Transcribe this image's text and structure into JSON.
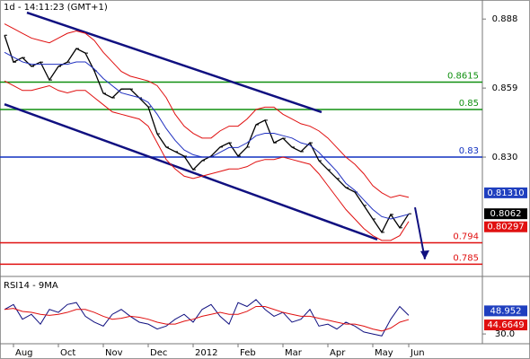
{
  "chart_data": [
    {
      "type": "ohlc-line",
      "title": "1d - 14:11:23 (GMT+1)",
      "categories": [
        null,
        "Aug",
        null,
        null,
        null,
        null,
        "Oct",
        null,
        null,
        null,
        null,
        "Nov",
        null,
        null,
        null,
        null,
        "Dec",
        null,
        null,
        null,
        null,
        "2012",
        null,
        null,
        null,
        null,
        "Feb",
        null,
        null,
        null,
        null,
        "Mar",
        null,
        null,
        null,
        null,
        "Apr",
        null,
        null,
        null,
        null,
        "May",
        null,
        null,
        null,
        "Jun"
      ],
      "ylim": [
        0.781,
        0.896
      ],
      "yticks": [
        0.888,
        0.859,
        {
          "value": 0.83,
          "label": "0.830"
        }
      ],
      "series": [
        {
          "color": "#000000",
          "values": [
            0.8812,
            0.8699,
            0.8718,
            0.8681,
            0.8699,
            0.8624,
            0.8681,
            0.8699,
            0.8756,
            0.8737,
            0.8662,
            0.8568,
            0.8549,
            0.8586,
            0.8586,
            0.8549,
            0.8511,
            0.8398,
            0.8342,
            0.8323,
            0.8304,
            0.8247,
            0.8285,
            0.8304,
            0.8342,
            0.836,
            0.8304,
            0.8342,
            0.8436,
            0.8455,
            0.836,
            0.8379,
            0.8342,
            0.8323,
            0.836,
            0.8285,
            0.8247,
            0.821,
            0.8172,
            0.8153,
            0.8097,
            0.804,
            0.7984,
            0.8059,
            0.8003,
            0.8062
          ]
        },
        {
          "color": "#e01010",
          "values": [
            0.886,
            0.884,
            0.882,
            0.88,
            0.879,
            0.878,
            0.88,
            0.882,
            0.883,
            0.882,
            0.879,
            0.874,
            0.87,
            0.866,
            0.864,
            0.863,
            0.862,
            0.86,
            0.855,
            0.848,
            0.843,
            0.84,
            0.838,
            0.838,
            0.841,
            0.843,
            0.843,
            0.846,
            0.85,
            0.851,
            0.851,
            0.848,
            0.846,
            0.844,
            0.843,
            0.841,
            0.838,
            0.834,
            0.83,
            0.827,
            0.823,
            0.818,
            0.815,
            0.813,
            0.814,
            0.8131
          ]
        },
        {
          "color": "#e01010",
          "values": [
            0.862,
            0.86,
            0.858,
            0.858,
            0.859,
            0.86,
            0.858,
            0.857,
            0.858,
            0.858,
            0.855,
            0.852,
            0.849,
            0.848,
            0.847,
            0.846,
            0.843,
            0.836,
            0.829,
            0.825,
            0.822,
            0.821,
            0.822,
            0.823,
            0.824,
            0.825,
            0.825,
            0.826,
            0.828,
            0.829,
            0.829,
            0.83,
            0.829,
            0.828,
            0.827,
            0.823,
            0.818,
            0.813,
            0.808,
            0.804,
            0.8,
            0.797,
            0.795,
            0.795,
            0.797,
            0.80297
          ]
        },
        {
          "color": "#2030c0",
          "values": [
            0.874,
            0.872,
            0.87,
            0.869,
            0.869,
            0.869,
            0.869,
            0.869,
            0.87,
            0.87,
            0.867,
            0.863,
            0.86,
            0.857,
            0.856,
            0.855,
            0.853,
            0.848,
            0.842,
            0.837,
            0.833,
            0.831,
            0.83,
            0.83,
            0.832,
            0.834,
            0.834,
            0.836,
            0.839,
            0.84,
            0.84,
            0.839,
            0.838,
            0.836,
            0.835,
            0.832,
            0.828,
            0.824,
            0.819,
            0.816,
            0.812,
            0.808,
            0.805,
            0.804,
            0.805,
            0.806
          ]
        }
      ],
      "levels": [
        {
          "value": 0.8615,
          "label": "0.8615",
          "color": "#109010"
        },
        {
          "value": 0.85,
          "label": "0.85",
          "color": "#109010"
        },
        {
          "value": 0.83,
          "label": "0.83",
          "color": "#1030c0"
        },
        {
          "value": 0.794,
          "label": "0.794",
          "color": "#e01010"
        },
        {
          "value": 0.785,
          "label": "0.785",
          "color": "#e01010"
        }
      ],
      "channels": [
        {
          "color": "#101080",
          "x": [
            2.5,
            35.3
          ],
          "y": [
            0.8907,
            0.8489
          ]
        },
        {
          "color": "#101080",
          "x": [
            0,
            41.5
          ],
          "y": [
            0.8522,
            0.7954
          ]
        }
      ],
      "arrow": {
        "color": "#101080",
        "x": [
          45.7,
          46.8
        ],
        "y": [
          0.8089,
          0.7871
        ]
      },
      "markers": [
        {
          "value": 0.8131,
          "label": "0.81310",
          "color": "#1f3fbf"
        },
        {
          "value": 0.8062,
          "label": "0.8062",
          "color": "#000000"
        },
        {
          "value": 0.80297,
          "label": "0.80297",
          "color": "#e01010"
        }
      ]
    },
    {
      "type": "line",
      "title": "RSI14 - 9MA",
      "ylim": [
        20,
        85
      ],
      "yticks": [
        {
          "value": 30,
          "label": "30.0"
        }
      ],
      "series": [
        {
          "color": "#101080",
          "values": [
            55,
            60,
            45,
            50,
            40,
            55,
            52,
            60,
            62,
            48,
            42,
            38,
            50,
            55,
            48,
            42,
            40,
            35,
            38,
            45,
            50,
            42,
            55,
            60,
            48,
            40,
            62,
            58,
            65,
            55,
            48,
            52,
            42,
            45,
            55,
            38,
            40,
            35,
            42,
            38,
            32,
            30,
            28,
            45,
            58,
            48.952
          ]
        },
        {
          "color": "#e01010",
          "values": [
            55,
            56,
            53,
            52,
            50,
            49,
            50,
            52,
            55,
            55,
            52,
            48,
            45,
            46,
            48,
            47,
            45,
            42,
            40,
            40,
            43,
            45,
            48,
            50,
            52,
            50,
            50,
            53,
            58,
            58,
            55,
            52,
            50,
            48,
            48,
            46,
            44,
            42,
            40,
            40,
            38,
            35,
            33,
            36,
            42,
            44.6649
          ]
        }
      ]
    }
  ]
}
